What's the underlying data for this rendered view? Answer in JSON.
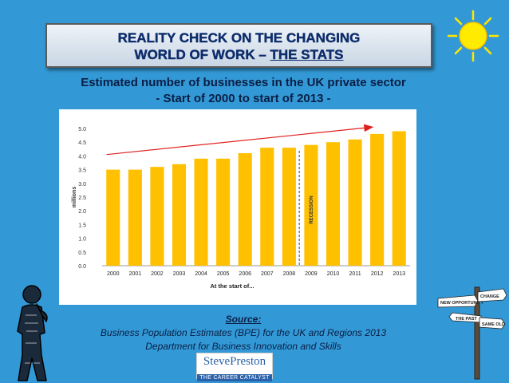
{
  "banner": {
    "line1": "REALITY CHECK ON THE CHANGING",
    "line2_prefix": "WORLD OF WORK – ",
    "line2_emph": "THE STATS"
  },
  "subtitle": {
    "line1": "Estimated number of businesses in the UK private sector",
    "line2": "- Start of 2000 to start of 2013 -"
  },
  "source": {
    "title": "Source:",
    "line1": "Business Population Estimates (BPE) for the UK and Regions 2013",
    "line2": "Department for Business Innovation and Skills"
  },
  "logo": {
    "name": "StevePreston",
    "tagline": "THE CAREER CATALYST"
  },
  "signpost": {
    "sign1": "NEW OPPORTUNITY",
    "sign2": "CHANGE",
    "sign3": "THE PAST",
    "sign4": "SAME OLD"
  },
  "icons": {
    "sun": "sun-icon",
    "person": "thinking-person-icon",
    "signpost": "signpost-icon"
  },
  "colors": {
    "background": "#3399d6",
    "bar": "#ffc000",
    "arrow": "#e02020",
    "banner_text": "#0d2c6b"
  },
  "chart_data": {
    "type": "bar",
    "categories": [
      "2000",
      "2001",
      "2002",
      "2003",
      "2004",
      "2005",
      "2006",
      "2007",
      "2008",
      "2009",
      "2010",
      "2011",
      "2012",
      "2013"
    ],
    "values": [
      3.5,
      3.5,
      3.6,
      3.7,
      3.9,
      3.9,
      4.1,
      4.3,
      4.3,
      4.4,
      4.5,
      4.6,
      4.8,
      4.9
    ],
    "xlabel": "At the start of...",
    "ylabel": "millions",
    "ylim": [
      0,
      5.0
    ],
    "yticks": [
      "0.0",
      "0.5",
      "1.0",
      "1.5",
      "2.0",
      "2.5",
      "3.0",
      "3.5",
      "4.0",
      "4.5",
      "5.0"
    ],
    "annotation": "RECESSION",
    "trend_arrow": true,
    "grid": false
  }
}
